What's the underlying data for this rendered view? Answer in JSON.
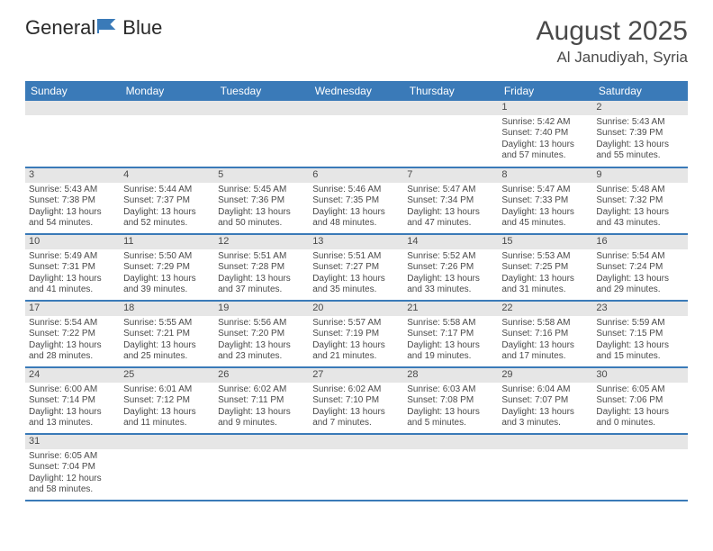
{
  "brand": {
    "name_a": "General",
    "name_b": "Blue"
  },
  "title": "August 2025",
  "location": "Al Janudiyah, Syria",
  "weekday_headers": [
    "Sunday",
    "Monday",
    "Tuesday",
    "Wednesday",
    "Thursday",
    "Friday",
    "Saturday"
  ],
  "colors": {
    "header_bg": "#3a7ab8",
    "daynum_bg": "#e6e6e6",
    "rule": "#3a7ab8",
    "text": "#4a4a4a"
  },
  "weeks": [
    [
      null,
      null,
      null,
      null,
      null,
      {
        "d": "1",
        "sunrise": "5:42 AM",
        "sunset": "7:40 PM",
        "day_h": "13",
        "day_m": "57"
      },
      {
        "d": "2",
        "sunrise": "5:43 AM",
        "sunset": "7:39 PM",
        "day_h": "13",
        "day_m": "55"
      }
    ],
    [
      {
        "d": "3",
        "sunrise": "5:43 AM",
        "sunset": "7:38 PM",
        "day_h": "13",
        "day_m": "54"
      },
      {
        "d": "4",
        "sunrise": "5:44 AM",
        "sunset": "7:37 PM",
        "day_h": "13",
        "day_m": "52"
      },
      {
        "d": "5",
        "sunrise": "5:45 AM",
        "sunset": "7:36 PM",
        "day_h": "13",
        "day_m": "50"
      },
      {
        "d": "6",
        "sunrise": "5:46 AM",
        "sunset": "7:35 PM",
        "day_h": "13",
        "day_m": "48"
      },
      {
        "d": "7",
        "sunrise": "5:47 AM",
        "sunset": "7:34 PM",
        "day_h": "13",
        "day_m": "47"
      },
      {
        "d": "8",
        "sunrise": "5:47 AM",
        "sunset": "7:33 PM",
        "day_h": "13",
        "day_m": "45"
      },
      {
        "d": "9",
        "sunrise": "5:48 AM",
        "sunset": "7:32 PM",
        "day_h": "13",
        "day_m": "43"
      }
    ],
    [
      {
        "d": "10",
        "sunrise": "5:49 AM",
        "sunset": "7:31 PM",
        "day_h": "13",
        "day_m": "41"
      },
      {
        "d": "11",
        "sunrise": "5:50 AM",
        "sunset": "7:29 PM",
        "day_h": "13",
        "day_m": "39"
      },
      {
        "d": "12",
        "sunrise": "5:51 AM",
        "sunset": "7:28 PM",
        "day_h": "13",
        "day_m": "37"
      },
      {
        "d": "13",
        "sunrise": "5:51 AM",
        "sunset": "7:27 PM",
        "day_h": "13",
        "day_m": "35"
      },
      {
        "d": "14",
        "sunrise": "5:52 AM",
        "sunset": "7:26 PM",
        "day_h": "13",
        "day_m": "33"
      },
      {
        "d": "15",
        "sunrise": "5:53 AM",
        "sunset": "7:25 PM",
        "day_h": "13",
        "day_m": "31"
      },
      {
        "d": "16",
        "sunrise": "5:54 AM",
        "sunset": "7:24 PM",
        "day_h": "13",
        "day_m": "29"
      }
    ],
    [
      {
        "d": "17",
        "sunrise": "5:54 AM",
        "sunset": "7:22 PM",
        "day_h": "13",
        "day_m": "28"
      },
      {
        "d": "18",
        "sunrise": "5:55 AM",
        "sunset": "7:21 PM",
        "day_h": "13",
        "day_m": "25"
      },
      {
        "d": "19",
        "sunrise": "5:56 AM",
        "sunset": "7:20 PM",
        "day_h": "13",
        "day_m": "23"
      },
      {
        "d": "20",
        "sunrise": "5:57 AM",
        "sunset": "7:19 PM",
        "day_h": "13",
        "day_m": "21"
      },
      {
        "d": "21",
        "sunrise": "5:58 AM",
        "sunset": "7:17 PM",
        "day_h": "13",
        "day_m": "19"
      },
      {
        "d": "22",
        "sunrise": "5:58 AM",
        "sunset": "7:16 PM",
        "day_h": "13",
        "day_m": "17"
      },
      {
        "d": "23",
        "sunrise": "5:59 AM",
        "sunset": "7:15 PM",
        "day_h": "13",
        "day_m": "15"
      }
    ],
    [
      {
        "d": "24",
        "sunrise": "6:00 AM",
        "sunset": "7:14 PM",
        "day_h": "13",
        "day_m": "13"
      },
      {
        "d": "25",
        "sunrise": "6:01 AM",
        "sunset": "7:12 PM",
        "day_h": "13",
        "day_m": "11"
      },
      {
        "d": "26",
        "sunrise": "6:02 AM",
        "sunset": "7:11 PM",
        "day_h": "13",
        "day_m": "9"
      },
      {
        "d": "27",
        "sunrise": "6:02 AM",
        "sunset": "7:10 PM",
        "day_h": "13",
        "day_m": "7"
      },
      {
        "d": "28",
        "sunrise": "6:03 AM",
        "sunset": "7:08 PM",
        "day_h": "13",
        "day_m": "5"
      },
      {
        "d": "29",
        "sunrise": "6:04 AM",
        "sunset": "7:07 PM",
        "day_h": "13",
        "day_m": "3"
      },
      {
        "d": "30",
        "sunrise": "6:05 AM",
        "sunset": "7:06 PM",
        "day_h": "13",
        "day_m": "0"
      }
    ],
    [
      {
        "d": "31",
        "sunrise": "6:05 AM",
        "sunset": "7:04 PM",
        "day_h": "12",
        "day_m": "58"
      },
      null,
      null,
      null,
      null,
      null,
      null
    ]
  ]
}
